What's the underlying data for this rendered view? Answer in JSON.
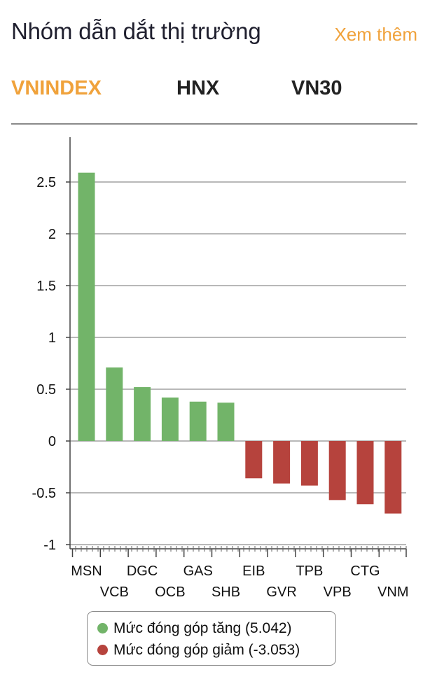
{
  "header": {
    "title": "Nhóm dẫn dắt thị trường",
    "more_label": "Xem thêm"
  },
  "tabs": [
    {
      "label": "VNINDEX",
      "active": true
    },
    {
      "label": "HNX",
      "active": false
    },
    {
      "label": "VN30",
      "active": false
    }
  ],
  "colors": {
    "accent": "#f0a23b",
    "positive": "#72b469",
    "negative": "#b6433d"
  },
  "chart_data": {
    "type": "bar",
    "categories": [
      "MSN",
      "VCB",
      "DGC",
      "OCB",
      "GAS",
      "SHB",
      "EIB",
      "GVR",
      "TPB",
      "VPB",
      "CTG",
      "VNM"
    ],
    "values": [
      2.59,
      0.71,
      0.52,
      0.42,
      0.38,
      0.37,
      -0.36,
      -0.41,
      -0.43,
      -0.57,
      -0.61,
      -0.7
    ],
    "y_ticks": [
      "2.5",
      "2",
      "1.5",
      "1",
      "0.5",
      "0",
      "-0.5",
      "-1"
    ],
    "ylim": [
      -1,
      2.9
    ],
    "grid": true,
    "legend": [
      {
        "label": "Mức đóng góp tăng (5.042)",
        "color": "#72b469"
      },
      {
        "label": "Mức đóng góp giảm (-3.053)",
        "color": "#b6433d"
      }
    ],
    "legend_position": "bottom"
  }
}
